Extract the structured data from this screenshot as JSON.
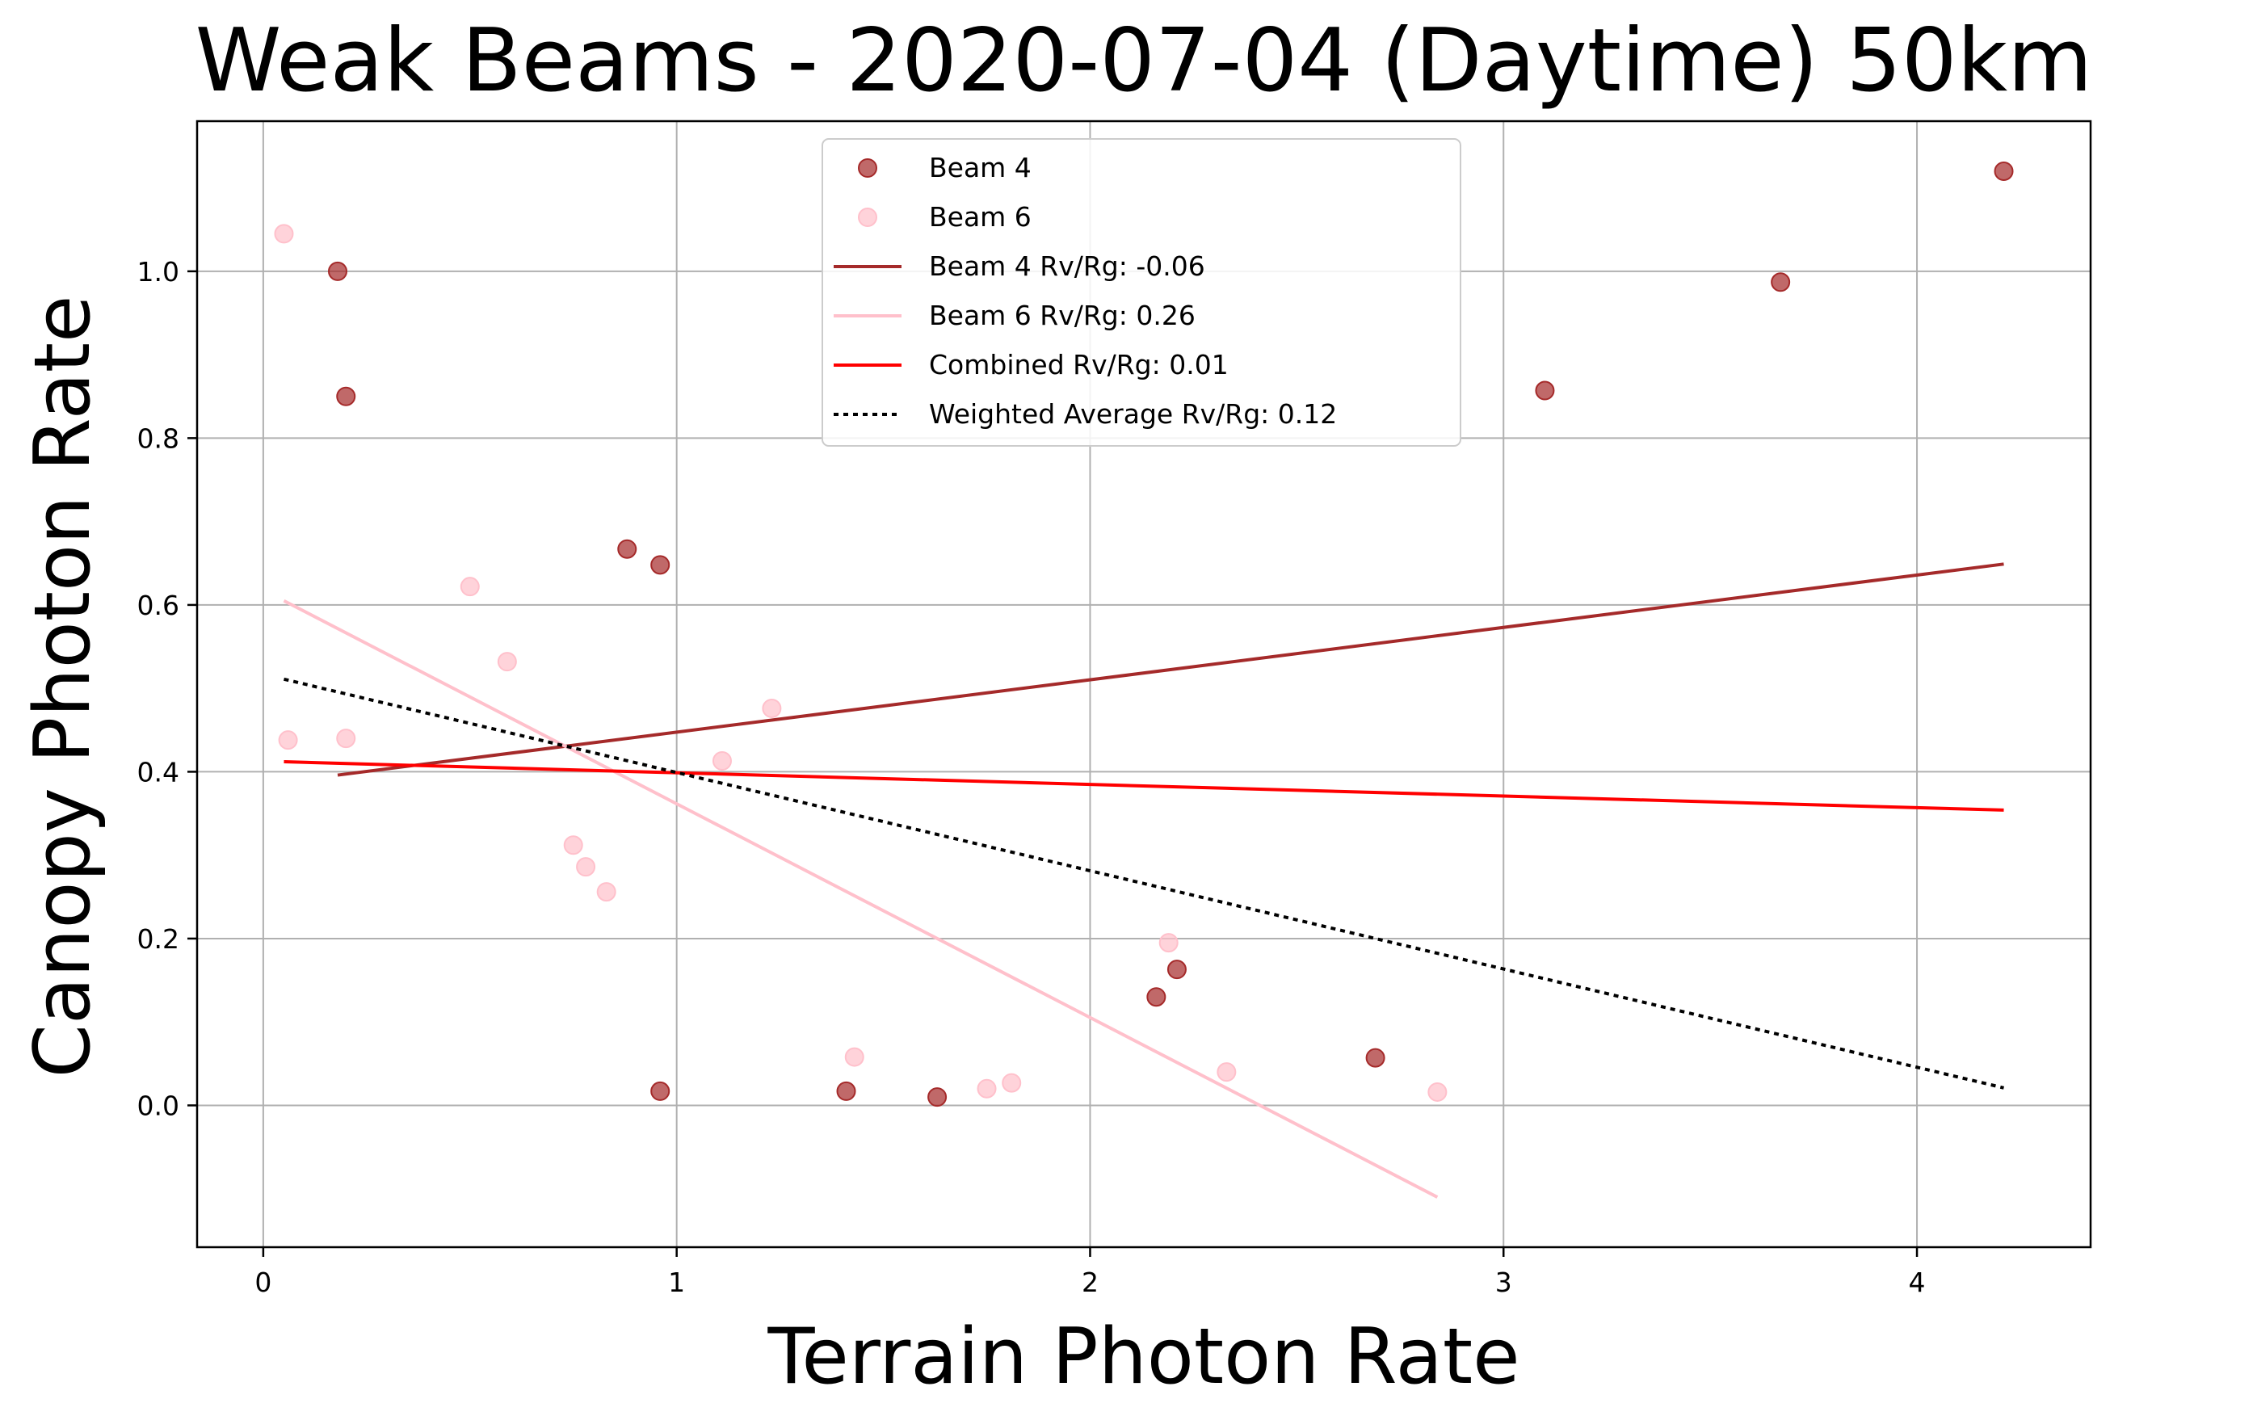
{
  "chart_data": {
    "type": "scatter",
    "title": "Weak Beams - 2020-07-04 (Daytime) 50km",
    "xlabel": "Terrain Photon Rate",
    "ylabel": "Canopy Photon Rate",
    "xlim": [
      -0.16,
      4.42
    ],
    "ylim": [
      -0.17,
      1.18
    ],
    "xticks": [
      0,
      1,
      2,
      3,
      4
    ],
    "yticks": [
      0.0,
      0.2,
      0.4,
      0.6,
      0.8,
      1.0
    ],
    "xtick_labels": [
      "0",
      "1",
      "2",
      "3",
      "4"
    ],
    "ytick_labels": [
      "0.0",
      "0.2",
      "0.4",
      "0.6",
      "0.8",
      "1.0"
    ],
    "grid": true,
    "legend_position": "top-center",
    "series": [
      {
        "name": "Beam 4",
        "kind": "scatter",
        "color": "#a52a2a",
        "points": [
          [
            0.18,
            1.0
          ],
          [
            0.2,
            0.85
          ],
          [
            0.88,
            0.667
          ],
          [
            0.96,
            0.648
          ],
          [
            0.96,
            0.017
          ],
          [
            1.41,
            0.017
          ],
          [
            1.63,
            0.01
          ],
          [
            2.16,
            0.13
          ],
          [
            2.21,
            0.163
          ],
          [
            2.69,
            0.057
          ],
          [
            3.1,
            0.857
          ],
          [
            3.67,
            0.987
          ],
          [
            4.21,
            1.12
          ]
        ]
      },
      {
        "name": "Beam 6",
        "kind": "scatter",
        "color": "#ffc0cb",
        "points": [
          [
            0.05,
            1.045
          ],
          [
            0.06,
            0.438
          ],
          [
            0.2,
            0.44
          ],
          [
            0.5,
            0.622
          ],
          [
            0.59,
            0.532
          ],
          [
            0.75,
            0.312
          ],
          [
            0.78,
            0.286
          ],
          [
            0.83,
            0.256
          ],
          [
            1.11,
            0.413
          ],
          [
            1.23,
            0.476
          ],
          [
            1.43,
            0.058
          ],
          [
            1.75,
            0.02
          ],
          [
            1.81,
            0.027
          ],
          [
            2.19,
            0.195
          ],
          [
            2.33,
            0.04
          ],
          [
            2.84,
            0.016
          ]
        ]
      },
      {
        "name": "Beam 4 Rv/Rg: -0.06",
        "kind": "line",
        "color": "#a52a2a",
        "style": "solid",
        "points": [
          [
            0.18,
            0.396
          ],
          [
            4.21,
            0.649
          ]
        ]
      },
      {
        "name": "Beam 6 Rv/Rg: 0.26",
        "kind": "line",
        "color": "#ffc0cb",
        "style": "solid",
        "points": [
          [
            0.05,
            0.605
          ],
          [
            2.84,
            -0.11
          ]
        ]
      },
      {
        "name": "Combined Rv/Rg: 0.01",
        "kind": "line",
        "color": "#ff0000",
        "style": "solid",
        "points": [
          [
            0.05,
            0.412
          ],
          [
            4.21,
            0.354
          ]
        ]
      },
      {
        "name": "Weighted Average Rv/Rg: 0.12",
        "kind": "line",
        "color": "#000000",
        "style": "dotted",
        "points": [
          [
            0.05,
            0.511
          ],
          [
            4.21,
            0.021
          ]
        ]
      }
    ]
  }
}
